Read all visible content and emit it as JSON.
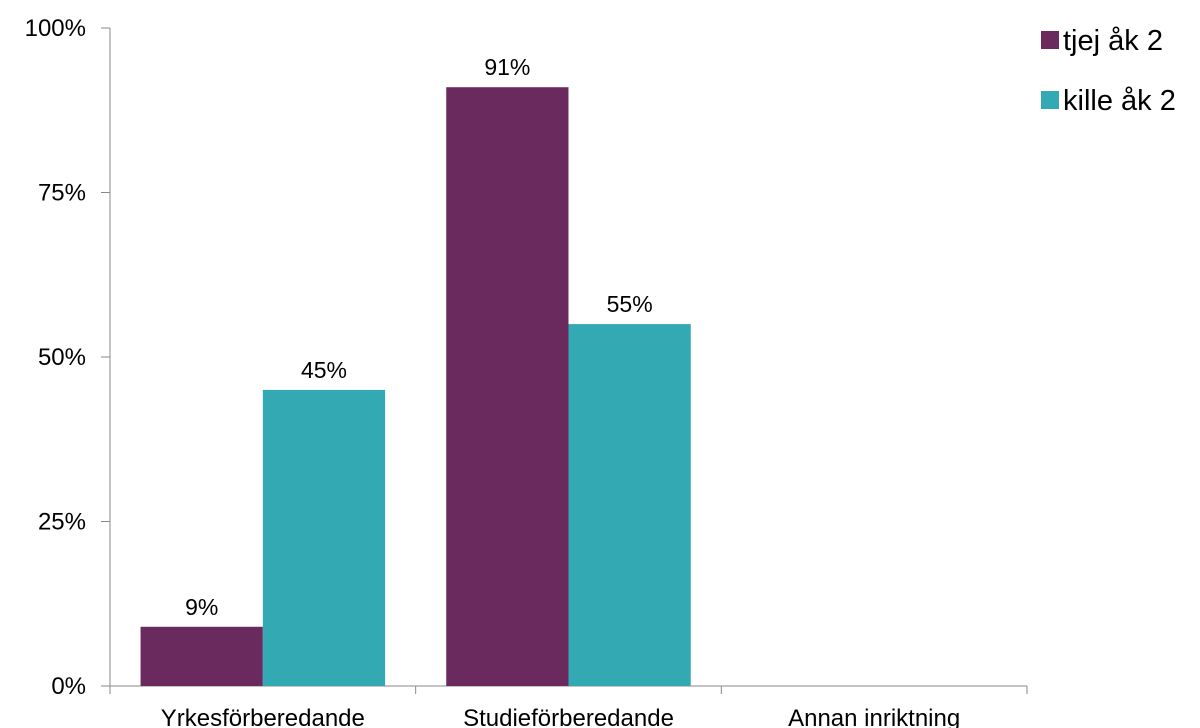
{
  "chart_data": {
    "type": "bar",
    "categories": [
      "Yrkesförberedande",
      "Studieförberedande",
      "Annan inriktning"
    ],
    "series": [
      {
        "name": "tjej åk 2",
        "values": [
          9,
          91,
          0
        ],
        "labels": [
          "9%",
          "91%",
          ""
        ],
        "color": "#6B2A5E"
      },
      {
        "name": "kille åk 2",
        "values": [
          45,
          55,
          0
        ],
        "labels": [
          "45%",
          "55%",
          ""
        ],
        "color": "#33A9B3"
      }
    ],
    "ylim": [
      0,
      100
    ],
    "yticks": [
      0,
      25,
      50,
      75,
      100
    ],
    "ytick_labels": [
      "0%",
      "25%",
      "50%",
      "75%",
      "100%"
    ],
    "grid": false,
    "legend": "top-right",
    "title": "",
    "xlabel": "",
    "ylabel": ""
  }
}
